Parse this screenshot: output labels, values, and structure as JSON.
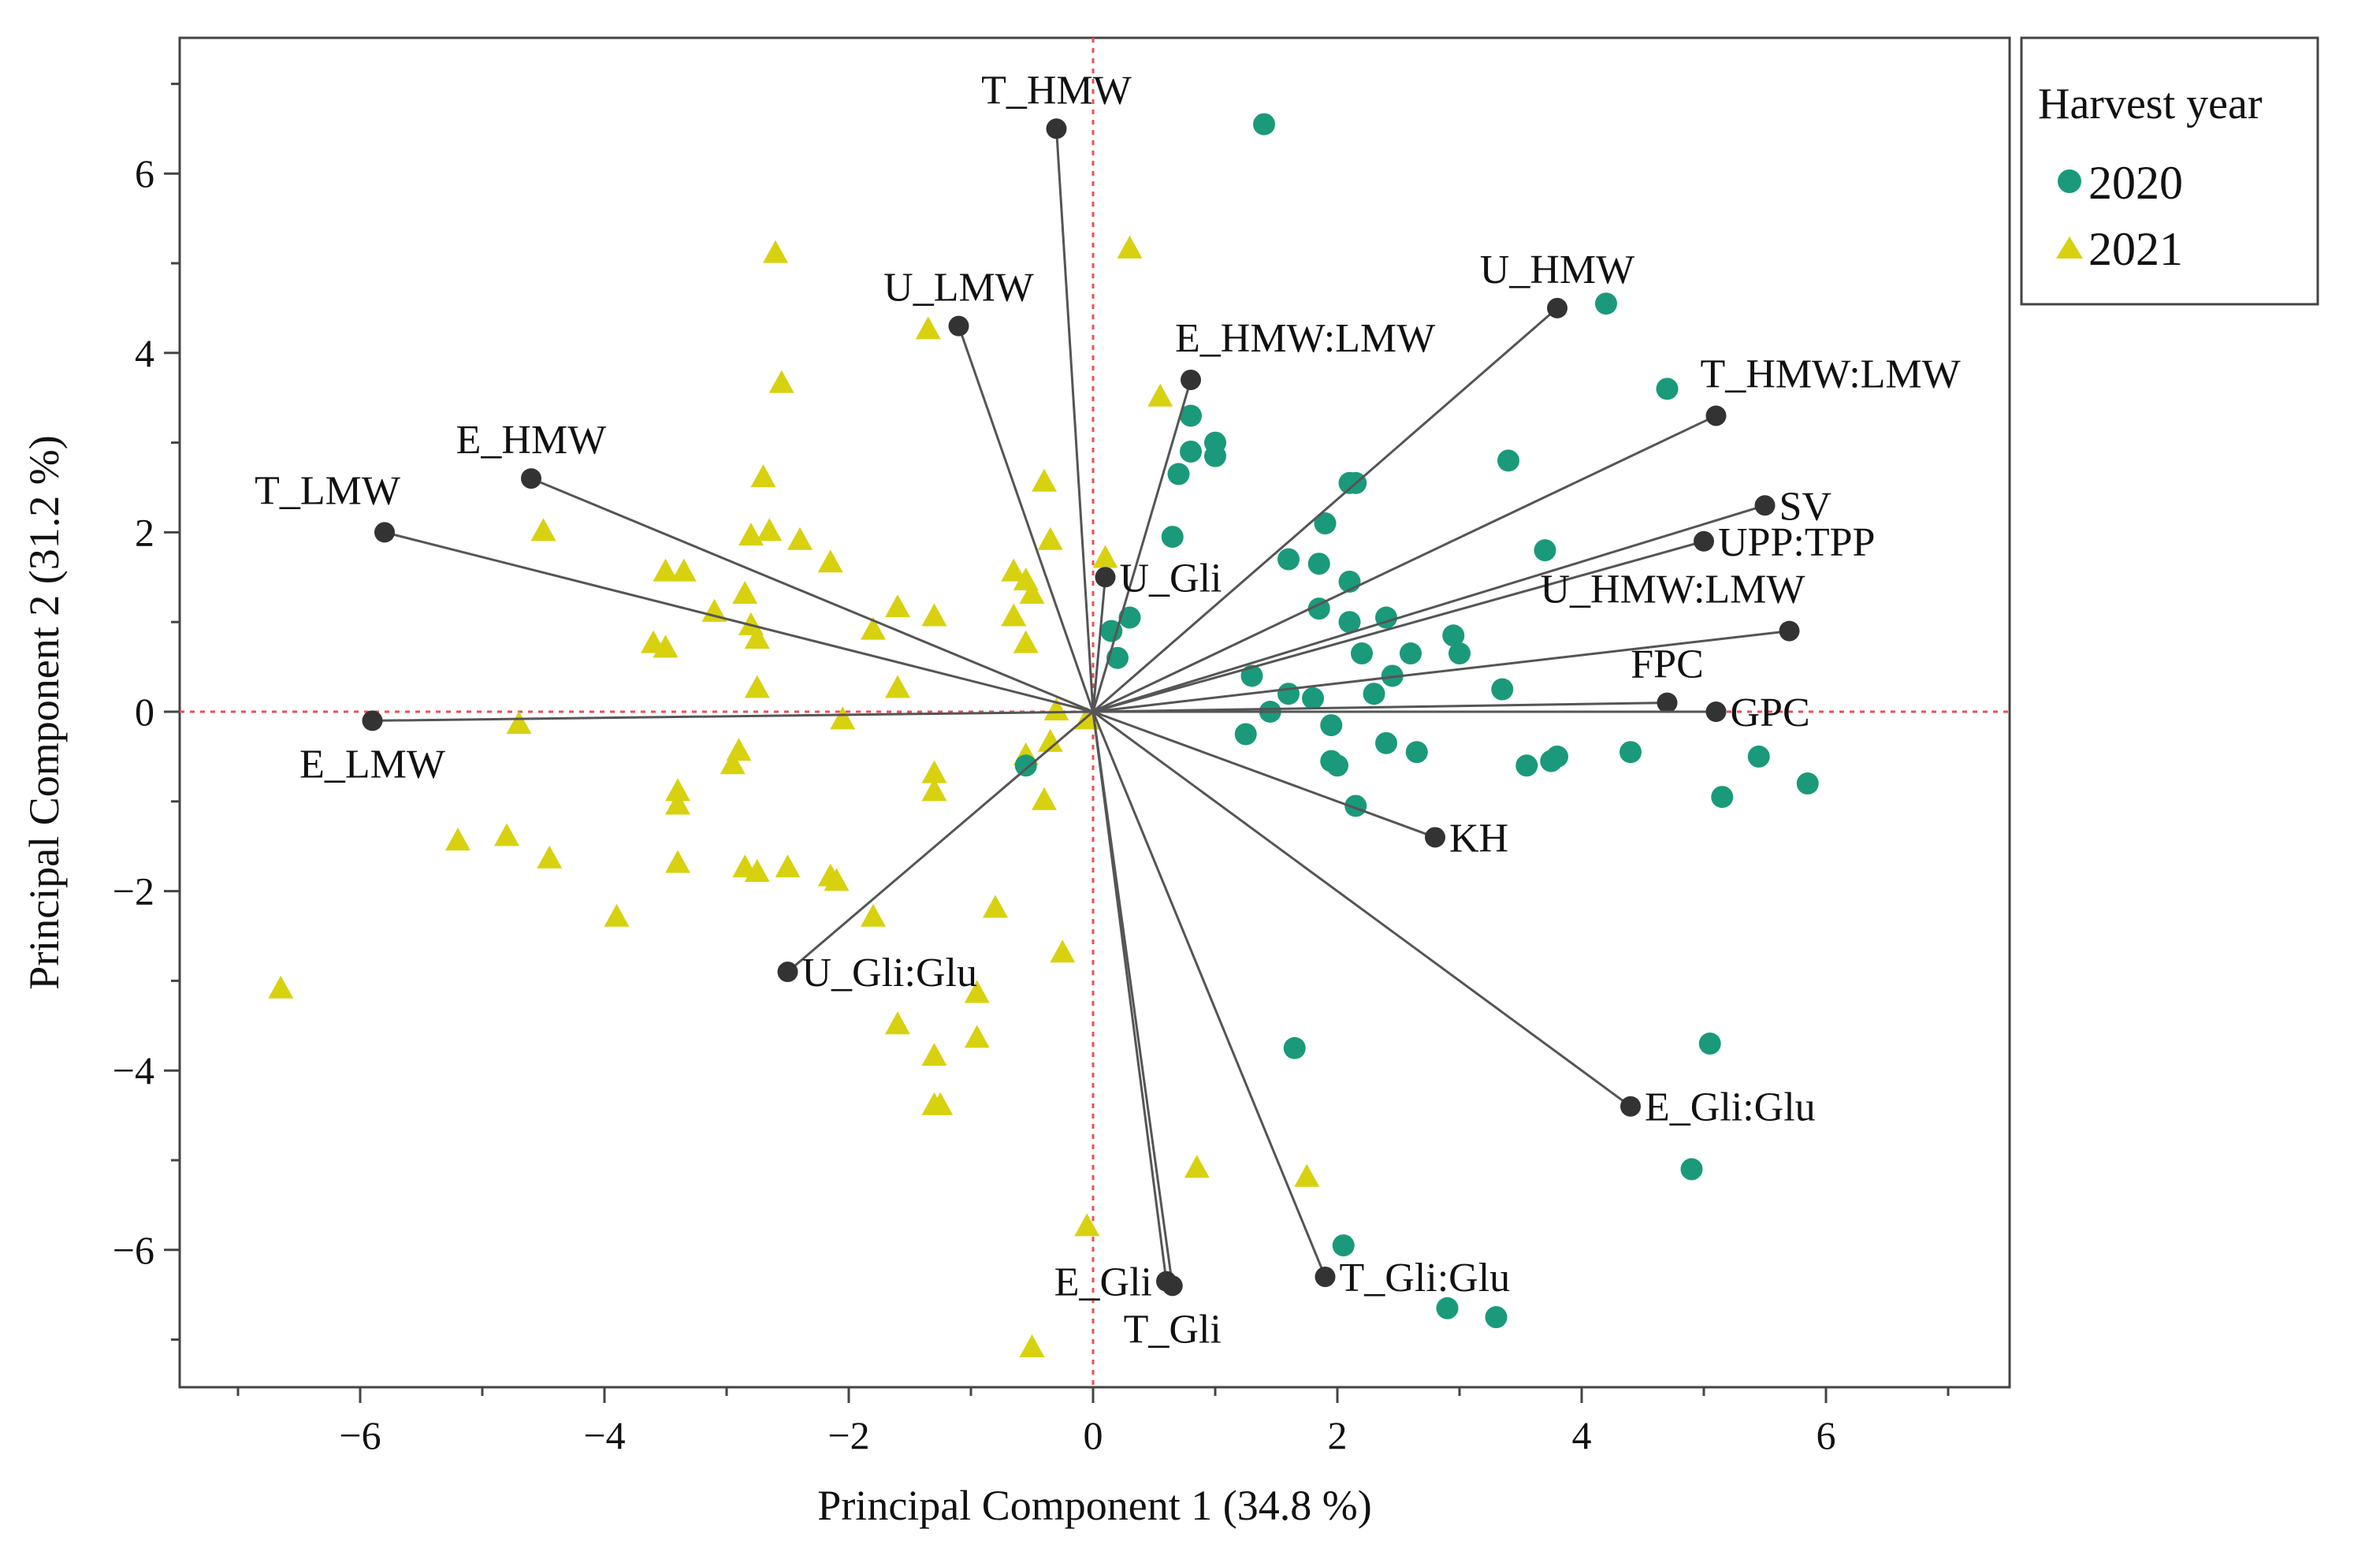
{
  "chart_data": {
    "type": "scatter",
    "title": "",
    "xlabel": "Principal Component 1  (34.8 %)",
    "ylabel": "Principal Component 2  (31.2 %)",
    "xlim": [
      -7.5,
      7.5
    ],
    "ylim": [
      -7.5,
      7.5
    ],
    "x_ticks": [
      -6,
      -4,
      -2,
      0,
      2,
      4,
      6
    ],
    "y_ticks": [
      -6,
      -4,
      -2,
      0,
      2,
      4,
      6
    ],
    "x_tick_labels": [
      "−6",
      "−4",
      "−2",
      "0",
      "2",
      "4",
      "6"
    ],
    "y_tick_labels": [
      "−6",
      "−4",
      "−2",
      "0",
      "2",
      "4",
      "6"
    ],
    "reference_lines": {
      "x": 0,
      "y": 0,
      "color": "#e8505b",
      "style": "dotted"
    },
    "legend": {
      "title": "Harvest year",
      "placement": "outside-top-right",
      "entries": [
        {
          "name": "2020",
          "marker": "circle",
          "color": "#1a9a7a"
        },
        {
          "name": "2021",
          "marker": "triangle",
          "color": "#d8d110"
        }
      ]
    },
    "loadings": [
      {
        "name": "T_HMW",
        "x": -0.3,
        "y": 6.5,
        "label_side": "above"
      },
      {
        "name": "U_LMW",
        "x": -1.1,
        "y": 4.3,
        "label_side": "above"
      },
      {
        "name": "E_HMW:LMW",
        "x": 0.8,
        "y": 3.7,
        "label_side": "above-right"
      },
      {
        "name": "U_HMW",
        "x": 3.8,
        "y": 4.5,
        "label_side": "above"
      },
      {
        "name": "T_HMW:LMW",
        "x": 5.1,
        "y": 3.3,
        "label_side": "above-right"
      },
      {
        "name": "SV",
        "x": 5.5,
        "y": 2.3,
        "label_side": "right"
      },
      {
        "name": "UPP:TPP",
        "x": 5.0,
        "y": 1.9,
        "label_side": "right"
      },
      {
        "name": "U_HMW:LMW",
        "x": 5.7,
        "y": 0.9,
        "label_side": "above-left"
      },
      {
        "name": "FPC",
        "x": 4.7,
        "y": 0.1,
        "label_side": "above"
      },
      {
        "name": "GPC",
        "x": 5.1,
        "y": 0.0,
        "label_side": "right"
      },
      {
        "name": "KH",
        "x": 2.8,
        "y": -1.4,
        "label_side": "right"
      },
      {
        "name": "E_Gli:Glu",
        "x": 4.4,
        "y": -4.4,
        "label_side": "right"
      },
      {
        "name": "T_Gli:Glu",
        "x": 1.9,
        "y": -6.3,
        "label_side": "right"
      },
      {
        "name": "T_Gli",
        "x": 0.65,
        "y": -6.4,
        "label_side": "below"
      },
      {
        "name": "E_Gli",
        "x": 0.6,
        "y": -6.35,
        "label_side": "left"
      },
      {
        "name": "U_Gli:Glu",
        "x": -2.5,
        "y": -2.9,
        "label_side": "right"
      },
      {
        "name": "U_Gli",
        "x": 0.1,
        "y": 1.5,
        "label_side": "right"
      },
      {
        "name": "E_HMW",
        "x": -4.6,
        "y": 2.6,
        "label_side": "above"
      },
      {
        "name": "T_LMW",
        "x": -5.8,
        "y": 2.0,
        "label_side": "above-left"
      },
      {
        "name": "E_LMW",
        "x": -5.9,
        "y": -0.1,
        "label_side": "below"
      }
    ],
    "series": [
      {
        "name": "2020",
        "marker": "circle",
        "color": "#1a9a7a",
        "points": [
          [
            1.4,
            6.55
          ],
          [
            4.2,
            4.55
          ],
          [
            4.7,
            3.6
          ],
          [
            0.8,
            3.3
          ],
          [
            0.8,
            2.9
          ],
          [
            1.0,
            3.0
          ],
          [
            1.0,
            2.85
          ],
          [
            0.7,
            2.65
          ],
          [
            2.1,
            2.55
          ],
          [
            2.15,
            2.55
          ],
          [
            3.4,
            2.8
          ],
          [
            1.9,
            2.1
          ],
          [
            0.65,
            1.95
          ],
          [
            1.6,
            1.7
          ],
          [
            3.7,
            1.8
          ],
          [
            1.85,
            1.65
          ],
          [
            2.1,
            1.45
          ],
          [
            0.3,
            1.05
          ],
          [
            0.15,
            0.9
          ],
          [
            1.85,
            1.15
          ],
          [
            2.1,
            1.0
          ],
          [
            2.4,
            1.05
          ],
          [
            0.2,
            0.6
          ],
          [
            2.2,
            0.65
          ],
          [
            2.6,
            0.65
          ],
          [
            2.95,
            0.85
          ],
          [
            3.0,
            0.65
          ],
          [
            1.3,
            0.4
          ],
          [
            2.45,
            0.4
          ],
          [
            1.6,
            0.2
          ],
          [
            1.8,
            0.15
          ],
          [
            2.3,
            0.2
          ],
          [
            3.35,
            0.25
          ],
          [
            1.45,
            0.0
          ],
          [
            1.95,
            -0.15
          ],
          [
            1.25,
            -0.25
          ],
          [
            2.4,
            -0.35
          ],
          [
            2.65,
            -0.45
          ],
          [
            1.95,
            -0.55
          ],
          [
            2.0,
            -0.6
          ],
          [
            3.55,
            -0.6
          ],
          [
            3.75,
            -0.55
          ],
          [
            3.8,
            -0.5
          ],
          [
            4.4,
            -0.45
          ],
          [
            5.45,
            -0.5
          ],
          [
            5.85,
            -0.8
          ],
          [
            5.15,
            -0.95
          ],
          [
            2.15,
            -1.05
          ],
          [
            -0.55,
            -0.6
          ],
          [
            1.65,
            -3.75
          ],
          [
            5.05,
            -3.7
          ],
          [
            4.9,
            -5.1
          ],
          [
            2.05,
            -5.95
          ],
          [
            2.9,
            -6.65
          ],
          [
            3.3,
            -6.75
          ]
        ]
      },
      {
        "name": "2021",
        "marker": "triangle",
        "color": "#d8d110",
        "points": [
          [
            -2.6,
            5.1
          ],
          [
            0.3,
            5.15
          ],
          [
            -1.35,
            4.25
          ],
          [
            -2.55,
            3.65
          ],
          [
            0.55,
            3.5
          ],
          [
            -2.7,
            2.6
          ],
          [
            -0.4,
            2.55
          ],
          [
            -4.5,
            2.0
          ],
          [
            -2.8,
            1.95
          ],
          [
            -2.65,
            2.0
          ],
          [
            -2.4,
            1.9
          ],
          [
            -2.15,
            1.65
          ],
          [
            -0.35,
            1.9
          ],
          [
            0.1,
            1.7
          ],
          [
            -3.5,
            1.55
          ],
          [
            -3.35,
            1.55
          ],
          [
            -0.65,
            1.55
          ],
          [
            -0.55,
            1.45
          ],
          [
            -0.5,
            1.3
          ],
          [
            -2.85,
            1.3
          ],
          [
            -3.1,
            1.1
          ],
          [
            -1.6,
            1.15
          ],
          [
            -1.3,
            1.05
          ],
          [
            -0.65,
            1.05
          ],
          [
            -2.8,
            0.95
          ],
          [
            -3.6,
            0.75
          ],
          [
            -3.5,
            0.7
          ],
          [
            -2.75,
            0.8
          ],
          [
            -1.8,
            0.9
          ],
          [
            -0.55,
            0.75
          ],
          [
            -2.75,
            0.25
          ],
          [
            -1.6,
            0.25
          ],
          [
            -0.3,
            0.0
          ],
          [
            -0.05,
            -0.1
          ],
          [
            -2.05,
            -0.1
          ],
          [
            -4.7,
            -0.15
          ],
          [
            -2.9,
            -0.45
          ],
          [
            -0.35,
            -0.35
          ],
          [
            -0.55,
            -0.5
          ],
          [
            -2.95,
            -0.6
          ],
          [
            -1.3,
            -0.7
          ],
          [
            -3.4,
            -0.9
          ],
          [
            -3.4,
            -1.05
          ],
          [
            -1.3,
            -0.9
          ],
          [
            -0.4,
            -1.0
          ],
          [
            -5.2,
            -1.45
          ],
          [
            -4.8,
            -1.4
          ],
          [
            -4.45,
            -1.65
          ],
          [
            -3.4,
            -1.7
          ],
          [
            -2.85,
            -1.75
          ],
          [
            -2.75,
            -1.8
          ],
          [
            -2.5,
            -1.75
          ],
          [
            -2.15,
            -1.85
          ],
          [
            -2.1,
            -1.9
          ],
          [
            -3.9,
            -2.3
          ],
          [
            -1.8,
            -2.3
          ],
          [
            -0.8,
            -2.2
          ],
          [
            -0.25,
            -2.7
          ],
          [
            -0.95,
            -3.15
          ],
          [
            -6.65,
            -3.1
          ],
          [
            -1.6,
            -3.5
          ],
          [
            -0.95,
            -3.65
          ],
          [
            -1.3,
            -3.85
          ],
          [
            -1.25,
            -4.4
          ],
          [
            -1.3,
            -4.4
          ],
          [
            0.85,
            -5.1
          ],
          [
            1.75,
            -5.2
          ],
          [
            -0.05,
            -5.75
          ],
          [
            -0.5,
            -7.1
          ]
        ]
      }
    ]
  }
}
